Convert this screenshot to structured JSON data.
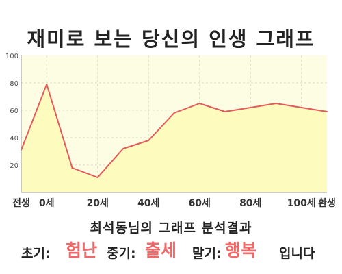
{
  "chart_data": {
    "type": "area",
    "title": "재미로 보는 당신의 인생 그래프",
    "categories": [
      "전생",
      "0세",
      "20세",
      "40세",
      "60세",
      "80세",
      "100세",
      "환생"
    ],
    "x": [
      -10,
      0,
      10,
      20,
      30,
      40,
      50,
      60,
      70,
      80,
      90,
      100,
      110
    ],
    "x_tick_values": [
      -10,
      0,
      20,
      40,
      60,
      80,
      100,
      110
    ],
    "values": [
      31,
      79,
      18,
      11,
      32,
      38,
      58,
      65,
      59,
      62,
      65,
      62,
      59
    ],
    "ylim": [
      0,
      100
    ],
    "yticks": [
      20,
      40,
      60,
      80,
      100
    ],
    "xlabel": "",
    "ylabel": "",
    "grid": true,
    "legend": "none",
    "colors": {
      "line": "#e55a5a",
      "fill": "#fefbbf",
      "plot_background": "#fdfde3",
      "grid": "#dcdcc4"
    }
  },
  "result": {
    "title": "최석동님의 그래프 분석결과",
    "early_label": "초기:",
    "early_value": "험난",
    "mid_label": "중기:",
    "mid_value": "출세",
    "late_label": "말기:",
    "late_value": "행복",
    "ending": "입니다",
    "accent_color": "#f26767"
  }
}
